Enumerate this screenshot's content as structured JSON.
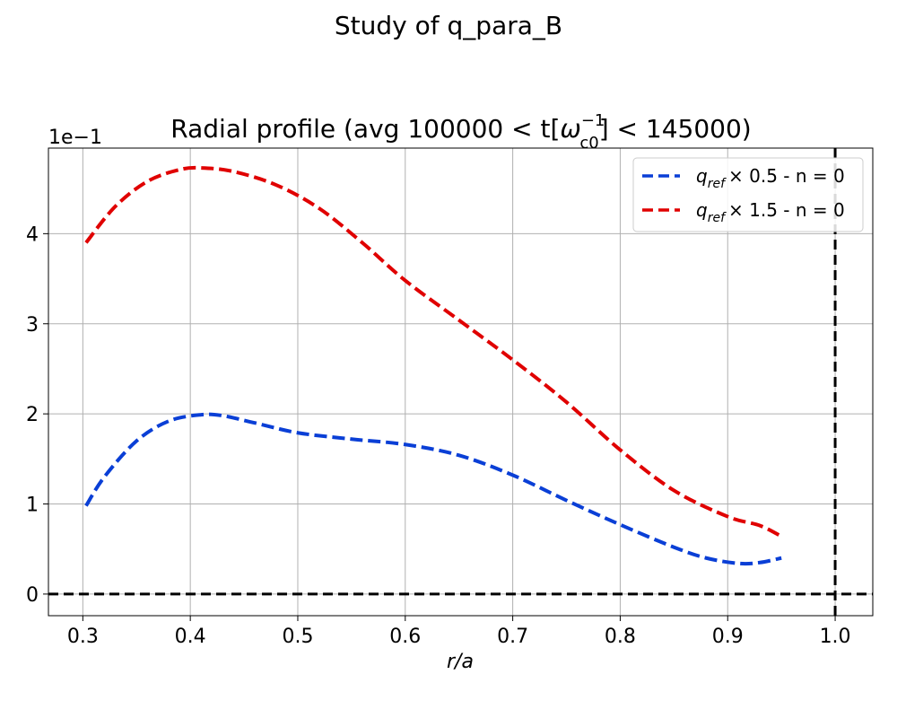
{
  "figure": {
    "suptitle": "Study of q_para_B"
  },
  "chart_data": {
    "type": "line",
    "title_prefix": "Radial profile (avg 100000 < t[",
    "title_symbol": "ω",
    "title_sub": "c0",
    "title_sup": "−1",
    "title_suffix": "] < 145000)",
    "xlabel": "r/a",
    "ylabel": "",
    "y_offset_label": "1e−1",
    "xlim": [
      0.268,
      1.035
    ],
    "ylim": [
      -0.24,
      4.95
    ],
    "x_ticks": [
      0.3,
      0.4,
      0.5,
      0.6,
      0.7,
      0.8,
      0.9,
      1.0
    ],
    "x_tick_labels": [
      "0.3",
      "0.4",
      "0.5",
      "0.6",
      "0.7",
      "0.8",
      "0.9",
      "1.0"
    ],
    "y_ticks": [
      0,
      1,
      2,
      3,
      4
    ],
    "y_tick_labels": [
      "0",
      "1",
      "2",
      "3",
      "4"
    ],
    "grid": true,
    "legend_position": "top-right",
    "reference_lines": {
      "horizontal_y": 0,
      "vertical_x": 1.0
    },
    "series": [
      {
        "name_base": "q",
        "name_sub": "ref",
        "name_tail": "× 0.5 - n = 0",
        "color": "#0a3fd6",
        "x": [
          0.303,
          0.32,
          0.35,
          0.38,
          0.41,
          0.43,
          0.46,
          0.5,
          0.55,
          0.6,
          0.65,
          0.7,
          0.75,
          0.8,
          0.85,
          0.88,
          0.91,
          0.93,
          0.95
        ],
        "y": [
          0.98,
          1.3,
          1.7,
          1.92,
          1.99,
          1.98,
          1.9,
          1.79,
          1.72,
          1.66,
          1.54,
          1.32,
          1.04,
          0.77,
          0.52,
          0.4,
          0.34,
          0.35,
          0.4
        ]
      },
      {
        "name_base": "q",
        "name_sub": "ref",
        "name_tail": "× 1.5 - n = 0",
        "color": "#e00000",
        "x": [
          0.303,
          0.33,
          0.36,
          0.39,
          0.41,
          0.44,
          0.48,
          0.52,
          0.56,
          0.6,
          0.65,
          0.7,
          0.75,
          0.8,
          0.85,
          0.9,
          0.93,
          0.95
        ],
        "y": [
          3.9,
          4.3,
          4.58,
          4.71,
          4.73,
          4.69,
          4.54,
          4.28,
          3.9,
          3.48,
          3.04,
          2.6,
          2.13,
          1.6,
          1.15,
          0.86,
          0.76,
          0.64
        ]
      }
    ]
  }
}
